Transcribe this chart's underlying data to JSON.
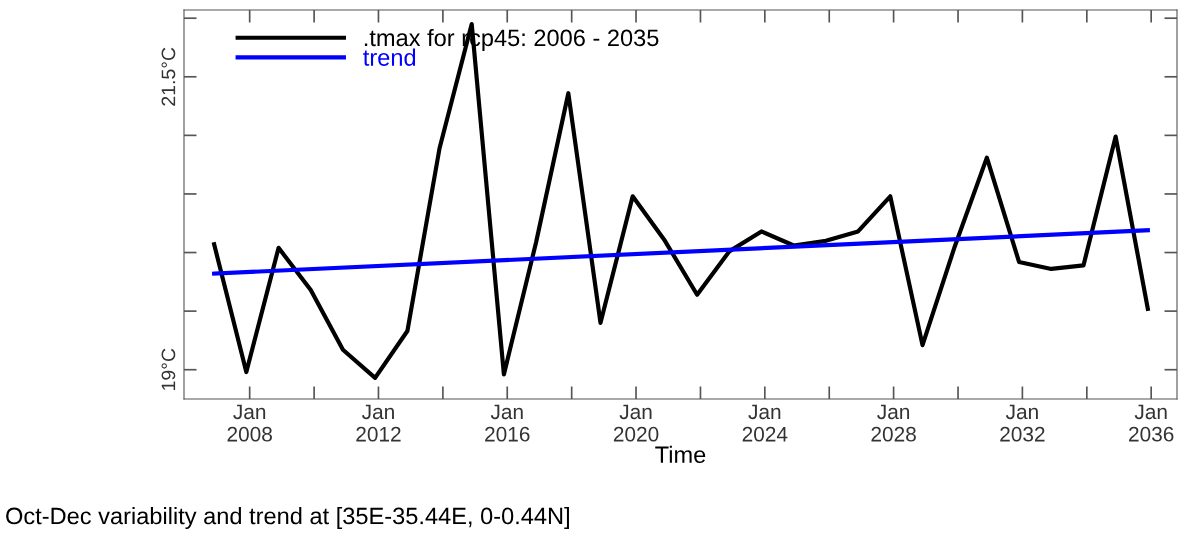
{
  "chart_data": {
    "type": "line",
    "xlabel": "Time",
    "annotations": [
      "Oct-Dec variability and trend at [35E-35.44E, 0-0.44N]"
    ],
    "x": [
      "2006-11-24",
      "2007-11-24",
      "2008-11-24",
      "2009-11-24",
      "2010-11-24",
      "2011-11-24",
      "2012-11-24",
      "2013-11-24",
      "2014-11-24",
      "2015-11-24",
      "2016-11-24",
      "2017-11-24",
      "2018-11-24",
      "2019-11-24",
      "2020-11-24",
      "2021-11-24",
      "2022-11-24",
      "2023-11-24",
      "2024-11-24",
      "2025-11-24",
      "2026-11-24",
      "2027-11-24",
      "2028-11-24",
      "2029-11-24",
      "2030-11-24",
      "2031-11-24",
      "2032-11-24",
      "2033-11-24",
      "2034-11-24",
      "2035-11-24"
    ],
    "series": [
      {
        "name": ".tmax for rcp45: 2006 - 2035",
        "color": "#000000",
        "values": [
          20.07,
          18.98,
          20.04,
          19.68,
          19.17,
          18.93,
          19.33,
          20.89,
          21.95,
          18.96,
          20.09,
          21.36,
          19.4,
          20.48,
          20.1,
          19.64,
          20.01,
          20.18,
          20.06,
          20.1,
          20.18,
          20.48,
          19.21,
          20.05,
          20.81,
          19.92,
          19.86,
          19.89,
          20.99,
          19.52
        ]
      },
      {
        "name": "trend",
        "color": "#0000ff",
        "x": [
          "2006-11-24",
          "2035-11-24"
        ],
        "values": [
          19.82,
          20.19
        ]
      }
    ],
    "xlim": [
      "2005-12-17",
      "2036-10-20"
    ],
    "xticks": [
      {
        "value": "2008-01-01",
        "label": "Jan\n2008"
      },
      {
        "value": "2010-01-01",
        "label": null
      },
      {
        "value": "2012-01-01",
        "label": "Jan\n2012"
      },
      {
        "value": "2014-01-01",
        "label": null
      },
      {
        "value": "2016-01-01",
        "label": "Jan\n2016"
      },
      {
        "value": "2018-01-01",
        "label": null
      },
      {
        "value": "2020-01-01",
        "label": "Jan\n2020"
      },
      {
        "value": "2022-01-01",
        "label": null
      },
      {
        "value": "2024-01-01",
        "label": "Jan\n2024"
      },
      {
        "value": "2026-01-01",
        "label": null
      },
      {
        "value": "2028-01-01",
        "label": "Jan\n2028"
      },
      {
        "value": "2030-01-01",
        "label": null
      },
      {
        "value": "2032-01-01",
        "label": "Jan\n2032"
      },
      {
        "value": "2034-01-01",
        "label": null
      },
      {
        "value": "2036-01-01",
        "label": "Jan\n2036"
      }
    ],
    "ylim": [
      18.75,
      22.07
    ],
    "yticks": [
      {
        "value": 19,
        "label": "19°C"
      },
      {
        "value": 19.5,
        "label": null
      },
      {
        "value": 20,
        "label": null
      },
      {
        "value": 20.5,
        "label": null
      },
      {
        "value": 21,
        "label": null
      },
      {
        "value": 21.5,
        "label": "21.5°C"
      },
      {
        "value": 22,
        "label": null
      }
    ],
    "grid": false,
    "legend": "top left",
    "marker": "none",
    "line_style": "solid"
  }
}
